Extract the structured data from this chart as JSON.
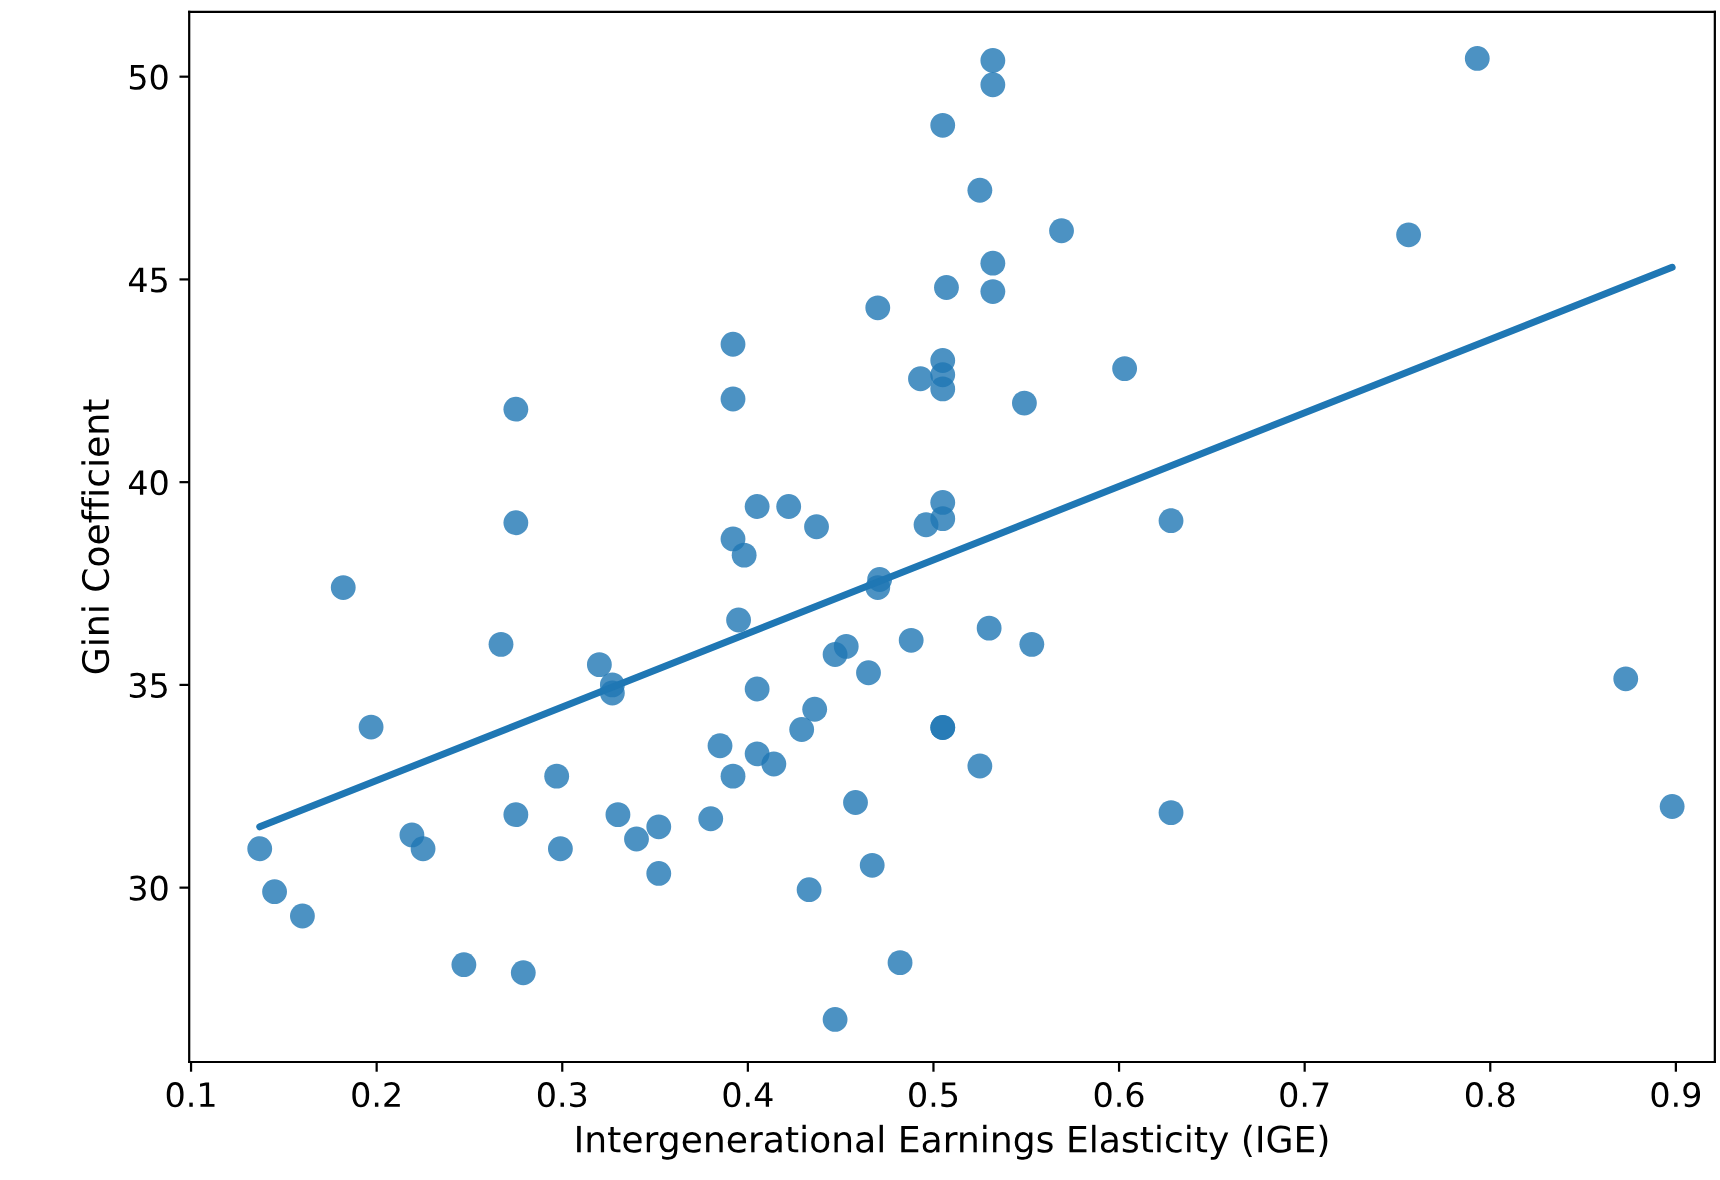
{
  "chart_data": {
    "type": "scatter",
    "xlabel": "Intergenerational Earnings Elasticity (IGE)",
    "ylabel": "Gini Coefficient",
    "series": [
      {
        "color": "#1f77b4",
        "marker": "circle",
        "x": [
          0.137,
          0.145,
          0.16,
          0.182,
          0.197,
          0.219,
          0.225,
          0.247,
          0.275,
          0.275,
          0.267,
          0.279,
          0.275,
          0.297,
          0.299,
          0.32,
          0.327,
          0.327,
          0.33,
          0.34,
          0.352,
          0.352,
          0.38,
          0.392,
          0.392,
          0.405,
          0.392,
          0.398,
          0.395,
          0.405,
          0.385,
          0.392,
          0.405,
          0.414,
          0.532,
          0.532,
          0.505,
          0.525,
          0.569,
          0.532,
          0.507,
          0.532,
          0.47,
          0.505,
          0.505,
          0.493,
          0.505,
          0.549,
          0.603,
          0.422,
          0.437,
          0.505,
          0.505,
          0.496,
          0.628,
          0.471,
          0.47,
          0.53,
          0.553,
          0.488,
          0.453,
          0.447,
          0.465,
          0.436,
          0.429,
          0.505,
          0.505,
          0.525,
          0.458,
          0.628,
          0.467,
          0.433,
          0.482,
          0.447,
          0.793,
          0.756,
          0.873,
          0.898
        ],
        "values": [
          30.96,
          29.9,
          29.3,
          37.4,
          33.96,
          31.3,
          30.96,
          28.1,
          41.8,
          39.0,
          36.0,
          27.9,
          31.8,
          32.75,
          30.96,
          35.5,
          35.0,
          34.8,
          31.8,
          31.2,
          31.5,
          30.35,
          31.7,
          43.4,
          42.05,
          39.4,
          38.6,
          38.2,
          36.6,
          34.9,
          33.5,
          32.75,
          33.3,
          33.05,
          50.4,
          49.8,
          48.8,
          47.2,
          46.2,
          45.4,
          44.8,
          44.7,
          44.3,
          43.0,
          42.65,
          42.55,
          42.3,
          41.95,
          42.8,
          39.4,
          38.9,
          39.5,
          39.1,
          38.95,
          39.05,
          37.6,
          37.4,
          36.4,
          36.0,
          36.1,
          35.95,
          35.75,
          35.3,
          34.4,
          33.9,
          33.95,
          33.95,
          33.0,
          32.1,
          31.85,
          30.55,
          29.95,
          28.15,
          26.75,
          50.45,
          46.1,
          35.15,
          32.0
        ]
      },
      {
        "type": "line",
        "color": "#1f77b4",
        "x": [
          0.137,
          0.898
        ],
        "values": [
          31.5,
          45.3
        ]
      }
    ],
    "xlim": [
      0.099,
      0.921
    ],
    "ylim": [
      25.7,
      51.6
    ],
    "xticks": [
      {
        "value": 0.1,
        "label": "0.1"
      },
      {
        "value": 0.2,
        "label": "0.2"
      },
      {
        "value": 0.3,
        "label": "0.3"
      },
      {
        "value": 0.4,
        "label": "0.4"
      },
      {
        "value": 0.5,
        "label": "0.5"
      },
      {
        "value": 0.6,
        "label": "0.6"
      },
      {
        "value": 0.7,
        "label": "0.7"
      },
      {
        "value": 0.8,
        "label": "0.8"
      },
      {
        "value": 0.9,
        "label": "0.9"
      }
    ],
    "yticks": [
      30,
      35,
      40,
      45,
      50
    ],
    "grid": false
  }
}
